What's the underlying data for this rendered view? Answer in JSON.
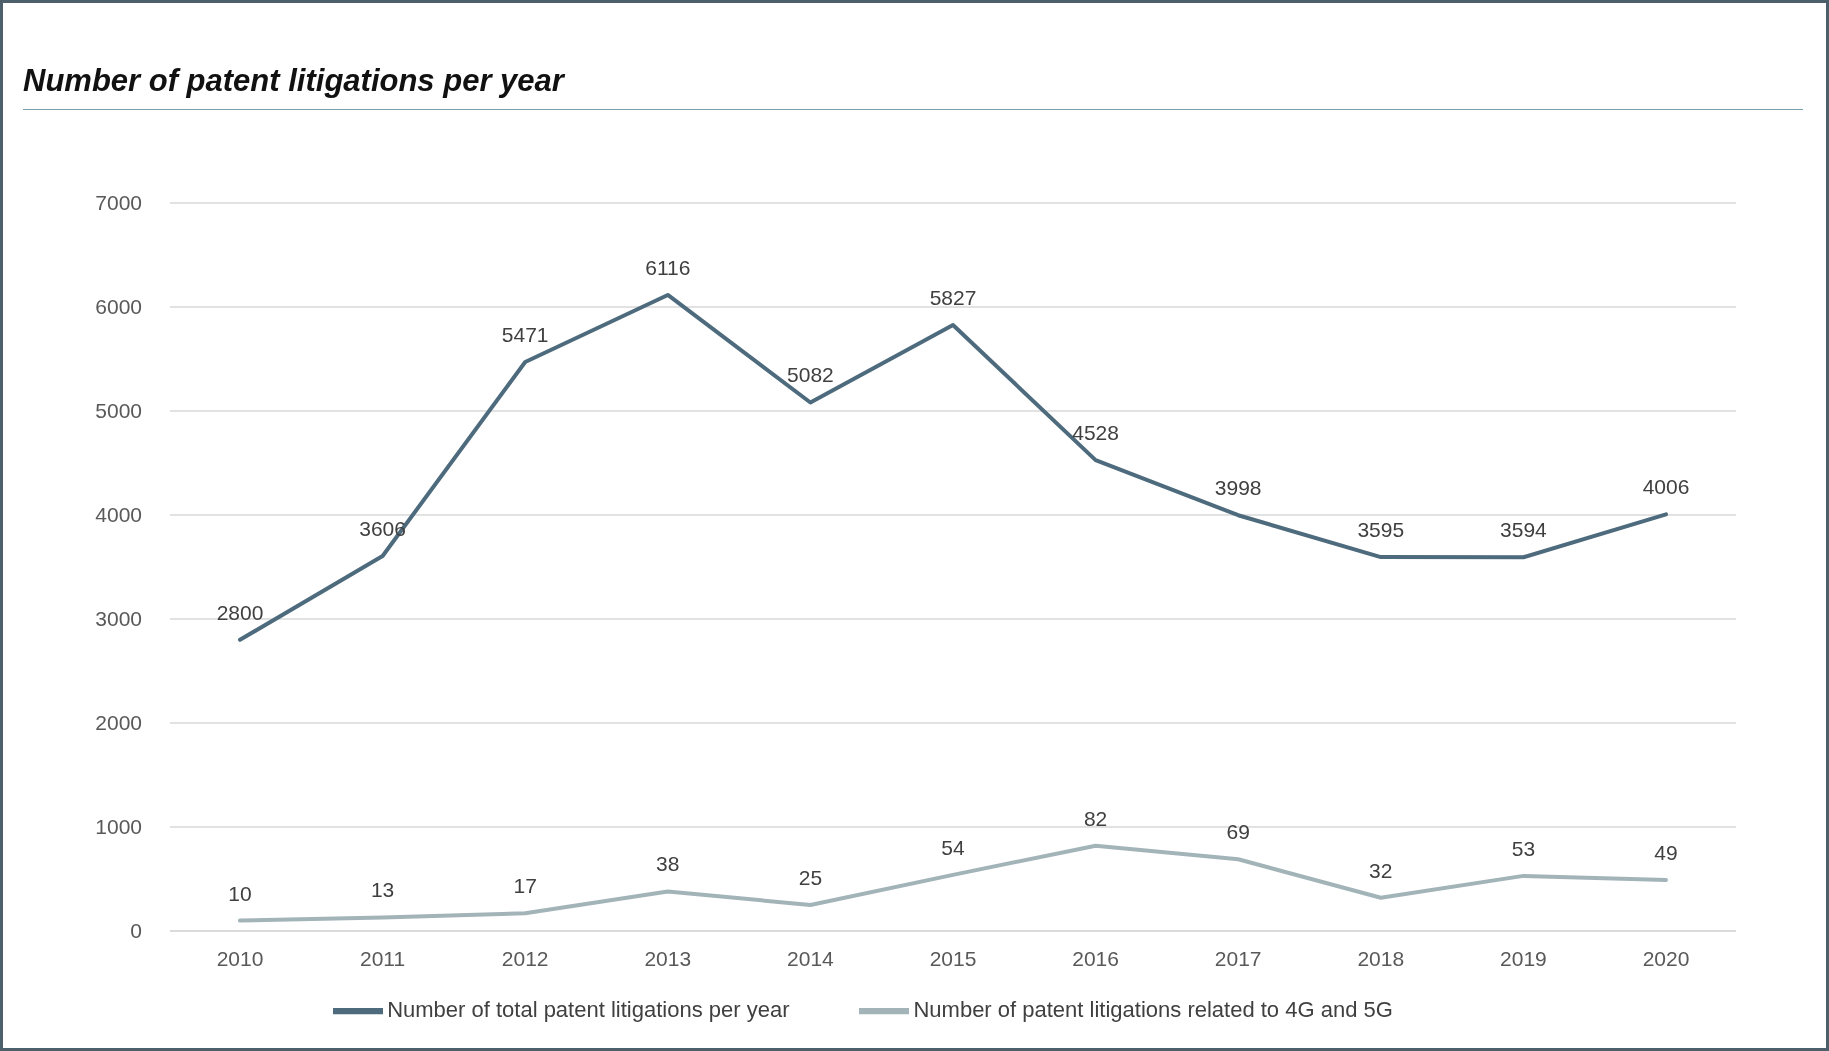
{
  "chart_data": {
    "type": "line",
    "title": "Number of patent litigations per year",
    "categories": [
      "2010",
      "2011",
      "2012",
      "2013",
      "2014",
      "2015",
      "2016",
      "2017",
      "2018",
      "2019",
      "2020"
    ],
    "series": [
      {
        "name": "Number of total patent litigations per year",
        "color": "#4d6b7d",
        "values": [
          2800,
          3606,
          5471,
          6116,
          5082,
          5827,
          4528,
          3998,
          3595,
          3594,
          4006
        ]
      },
      {
        "name": "Number of patent litigations related to 4G and 5G",
        "color": "#a2b4b8",
        "axis": "y2",
        "values": [
          10,
          13,
          17,
          38,
          25,
          54,
          82,
          69,
          32,
          53,
          49
        ]
      }
    ],
    "ylim": [
      0,
      7000
    ],
    "yticks": [
      0,
      1000,
      2000,
      3000,
      4000,
      5000,
      6000,
      7000
    ],
    "y2lim": [
      0,
      700
    ],
    "grid": "y",
    "legend": "bottom",
    "data_labels": true,
    "marker": "none"
  }
}
